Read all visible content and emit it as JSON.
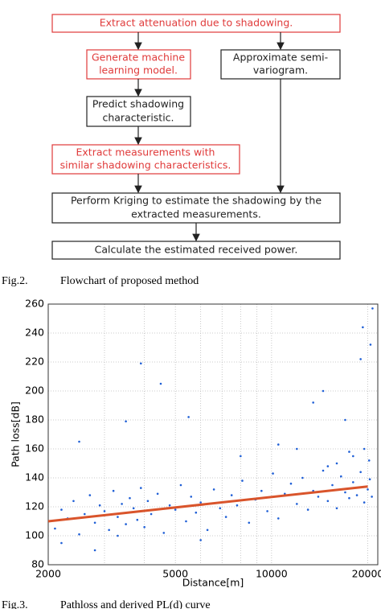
{
  "flowchart": {
    "nodes": [
      {
        "lines": [
          "Extract attenuation due to shadowing."
        ]
      },
      {
        "lines": [
          "Generate machine",
          "learning model."
        ]
      },
      {
        "lines": [
          "Approximate semi-",
          "variogram."
        ]
      },
      {
        "lines": [
          "Predict shadowing",
          "characteristic."
        ]
      },
      {
        "lines": [
          "Extract measurements with",
          "similar shadowing characteristics."
        ]
      },
      {
        "lines": [
          "Perform Kriging to estimate the shadowing by the",
          "extracted measurements."
        ]
      },
      {
        "lines": [
          "Calculate the estimated received power."
        ]
      }
    ]
  },
  "captions": [
    {
      "label": "Fig.2.",
      "text": "Flowchart of proposed method"
    },
    {
      "label": "Fig.3.",
      "text": "Pathloss and derived PL(d) curve"
    }
  ],
  "chart_data": {
    "type": "scatter",
    "xlabel": "Distance[m]",
    "ylabel": "Path loss[dB]",
    "xscale": "log",
    "xlim": [
      2000,
      21500
    ],
    "ylim": [
      80,
      260
    ],
    "xticks": [
      2000,
      5000,
      10000,
      20000
    ],
    "yticks": [
      80,
      100,
      120,
      140,
      160,
      180,
      200,
      220,
      240,
      260
    ],
    "xgrid_minor": [
      3000,
      4000,
      6000,
      7000,
      8000,
      9000
    ],
    "grid": true,
    "color": "#1f5fd6",
    "x": [
      2100,
      2200,
      2300,
      2400,
      2500,
      2600,
      2700,
      2800,
      2900,
      3000,
      3100,
      3200,
      3300,
      3400,
      3500,
      3600,
      3700,
      3800,
      3900,
      4000,
      4100,
      4200,
      4400,
      4600,
      4800,
      5000,
      5200,
      5400,
      5600,
      5800,
      6000,
      6300,
      6600,
      6900,
      7200,
      7500,
      7800,
      8100,
      8500,
      8900,
      9300,
      9700,
      10100,
      10500,
      11000,
      11500,
      12000,
      12500,
      13000,
      13500,
      14000,
      14500,
      15000,
      15500,
      16000,
      16500,
      17000,
      17500,
      18000,
      18500,
      19000,
      19500,
      20000,
      20300,
      20600,
      3900,
      4500,
      2500,
      3500,
      5500,
      14500,
      13500,
      19000,
      19300,
      20700,
      20400,
      17000,
      12000,
      8000,
      10500,
      2200,
      2800,
      6000,
      3300,
      16000,
      18000,
      19500,
      15000,
      20200,
      17500
    ],
    "y": [
      105,
      118,
      112,
      124,
      101,
      115,
      128,
      109,
      121,
      117,
      104,
      131,
      113,
      122,
      108,
      126,
      119,
      111,
      133,
      106,
      124,
      115,
      129,
      102,
      121,
      118,
      135,
      110,
      127,
      116,
      123,
      104,
      132,
      119,
      113,
      128,
      121,
      138,
      109,
      125,
      131,
      117,
      143,
      112,
      129,
      136,
      122,
      140,
      118,
      131,
      127,
      145,
      124,
      135,
      119,
      141,
      130,
      126,
      137,
      128,
      144,
      123,
      132,
      139,
      127,
      219,
      205,
      165,
      179,
      182,
      200,
      192,
      222,
      244,
      257,
      232,
      180,
      160,
      155,
      163,
      95,
      90,
      97,
      100,
      150,
      155,
      160,
      148,
      152,
      158
    ],
    "fit": {
      "x": [
        2000,
        20000
      ],
      "y": [
        110,
        134
      ],
      "color": "#d9542b"
    }
  }
}
